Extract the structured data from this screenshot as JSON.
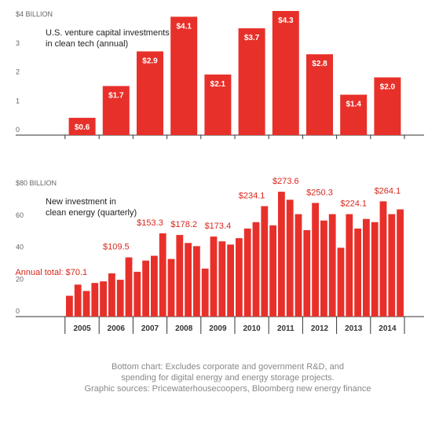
{
  "chart_data": [
    {
      "type": "bar",
      "title": [
        "U.S. venture capital investments",
        "in clean tech (annual)"
      ],
      "values": [
        0.6,
        1.7,
        2.9,
        4.1,
        2.1,
        3.7,
        4.3,
        2.8,
        1.4,
        2.0
      ],
      "value_labels": [
        "$0.6",
        "$1.7",
        "$2.9",
        "$4.1",
        "$2.1",
        "$3.7",
        "$4.3",
        "$2.8",
        "$1.4",
        "$2.0"
      ],
      "color": "#e8302a",
      "ylim": [
        0,
        4
      ],
      "yticks": [
        0,
        1,
        2,
        3,
        {
          "value": 4,
          "label": "$4 BILLION"
        }
      ]
    },
    {
      "type": "bar",
      "title": [
        "New investment in",
        "clean energy (quarterly)"
      ],
      "groups": [
        "2005",
        "2006",
        "2007",
        "2008",
        "2009",
        "2010",
        "2011",
        "2012",
        "2013",
        "2014"
      ],
      "values": [
        13,
        20,
        16,
        21,
        22,
        27,
        23,
        37,
        28,
        35,
        38,
        52,
        36,
        51,
        46,
        44,
        30,
        50,
        47,
        45,
        49,
        55,
        59,
        69,
        57,
        78,
        73,
        64,
        54,
        71,
        60,
        64,
        43,
        64,
        55,
        61,
        59,
        72,
        64,
        67
      ],
      "annual_totals": [
        70.1,
        109.5,
        153.3,
        178.2,
        173.4,
        234.1,
        273.6,
        250.3,
        224.1,
        264.1
      ],
      "annual_total_labels": [
        "Annual total: $70.1",
        "$109.5",
        "$153.3",
        "$178.2",
        "$173.4",
        "$234.1",
        "$273.6",
        "$250.3",
        "$224.1",
        "$264.1"
      ],
      "color": "#e8302a",
      "ylim": [
        0,
        80
      ],
      "yticks": [
        0,
        20,
        40,
        60,
        {
          "value": 80,
          "label": "$80 BILLION"
        }
      ]
    }
  ],
  "notes": [
    "Bottom chart: Excludes corporate and government R&D, and",
    "spending for digital energy and energy storage projects.",
    "Graphic sources: Pricewaterhousecoopers, Bloomberg new energy finance"
  ]
}
